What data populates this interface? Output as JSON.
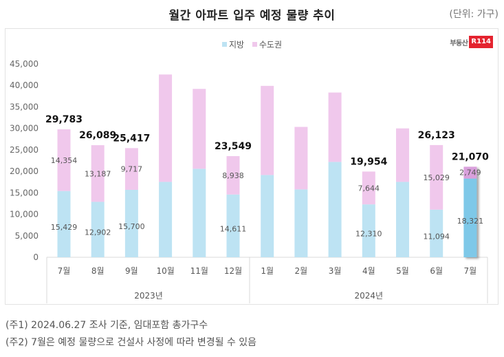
{
  "header": {
    "title": "월간 아파트 입주 예정 물량 추이",
    "unit": "(단위: 가구)"
  },
  "logo": {
    "text": "부동산",
    "badge": "R114"
  },
  "colors": {
    "region": "#bde3f3",
    "capital": "#f0c8ec",
    "region_highlight": "#7ec8e8",
    "capital_highlight": "#d9a0dc"
  },
  "chart_data": {
    "type": "bar",
    "stacked": true,
    "title": "월간 아파트 입주 예정 물량 추이",
    "xlabel": "",
    "ylabel": "(단위: 가구)",
    "ylim": [
      0,
      45000
    ],
    "yticks": [
      0,
      5000,
      10000,
      15000,
      20000,
      25000,
      30000,
      35000,
      40000,
      45000
    ],
    "ytick_labels": [
      "0",
      "5,000",
      "10,000",
      "15,000",
      "20,000",
      "25,000",
      "30,000",
      "35,000",
      "40,000",
      "45,000"
    ],
    "grid": false,
    "legend": {
      "position": "top-center",
      "entries": [
        "지방",
        "수도권"
      ]
    },
    "categories": [
      "7월",
      "8월",
      "9월",
      "10월",
      "11월",
      "12월",
      "1월",
      "2월",
      "3월",
      "4월",
      "5월",
      "6월",
      "7월"
    ],
    "groups": [
      {
        "label": "2023년",
        "count": 6
      },
      {
        "label": "2024년",
        "count": 7
      }
    ],
    "series": [
      {
        "name": "지방",
        "values": [
          15429,
          12902,
          15700,
          17550,
          20600,
          14611,
          19150,
          15800,
          22200,
          12310,
          17550,
          11094,
          18321
        ]
      },
      {
        "name": "수도권",
        "values": [
          14354,
          13187,
          9717,
          25000,
          18600,
          8938,
          20750,
          14550,
          16150,
          7644,
          12450,
          15029,
          2749
        ]
      }
    ],
    "totals": [
      29783,
      26089,
      25417,
      42550,
      39200,
      23549,
      39900,
      30350,
      38350,
      19954,
      30000,
      26123,
      21070
    ],
    "labeled": [
      true,
      true,
      true,
      false,
      false,
      true,
      false,
      false,
      false,
      true,
      false,
      true,
      true
    ],
    "value_labels": {
      "region": [
        "15,429",
        "12,902",
        "15,700",
        "",
        "",
        "14,611",
        "",
        "",
        "",
        "12,310",
        "",
        "11,094",
        "18,321"
      ],
      "capital": [
        "14,354",
        "13,187",
        "9,717",
        "",
        "",
        "8,938",
        "",
        "",
        "",
        "7,644",
        "",
        "15,029",
        "2,749"
      ],
      "total": [
        "29,783",
        "26,089",
        "25,417",
        "",
        "",
        "23,549",
        "",
        "",
        "",
        "19,954",
        "",
        "26,123",
        "21,070"
      ]
    },
    "highlight_index": 12
  },
  "footnotes": [
    "(주1) 2024.06.27 조사 기준, 임대포함 총가구수",
    "(주2) 7월은 예정 물량으로 건설사 사정에 따라 변경될 수 있음"
  ]
}
